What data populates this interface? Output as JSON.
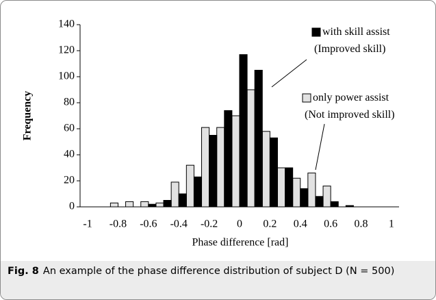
{
  "chart_data": {
    "type": "bar",
    "x_label": "Phase difference [rad]",
    "y_label": "Frequency",
    "x": [
      -1,
      -0.9,
      -0.8,
      -0.7,
      -0.6,
      -0.5,
      -0.4,
      -0.3,
      -0.2,
      -0.1,
      0,
      0.1,
      0.2,
      0.3,
      0.4,
      0.5,
      0.6,
      0.7,
      0.8,
      0.9,
      1
    ],
    "series": [
      {
        "name": "only power assist (Not improved skill)",
        "color": "#e2e2e2",
        "values": [
          0,
          0,
          3,
          4,
          4,
          3,
          19,
          32,
          61,
          61,
          70,
          90,
          58,
          30,
          22,
          26,
          16,
          0,
          0,
          0,
          0
        ]
      },
      {
        "name": "with skill assist (Improved skill)",
        "color": "#000000",
        "values": [
          0,
          0,
          0,
          0,
          2,
          5,
          10,
          23,
          55,
          74,
          117,
          105,
          53,
          30,
          14,
          8,
          4,
          1,
          0,
          0,
          0
        ]
      }
    ],
    "xlim": [
      -1.05,
      1.05
    ],
    "xticks": [
      -1,
      -0.8,
      -0.6,
      -0.4,
      -0.2,
      0,
      0.2,
      0.4,
      0.6,
      0.8,
      1
    ],
    "ylim": [
      0,
      140
    ],
    "yticks": [
      0,
      20,
      40,
      60,
      80,
      100,
      120,
      140
    ],
    "grid": false
  },
  "caption": {
    "label": "Fig. 8",
    "text": "An example of the phase difference distribution of subject D (N = 500)"
  }
}
